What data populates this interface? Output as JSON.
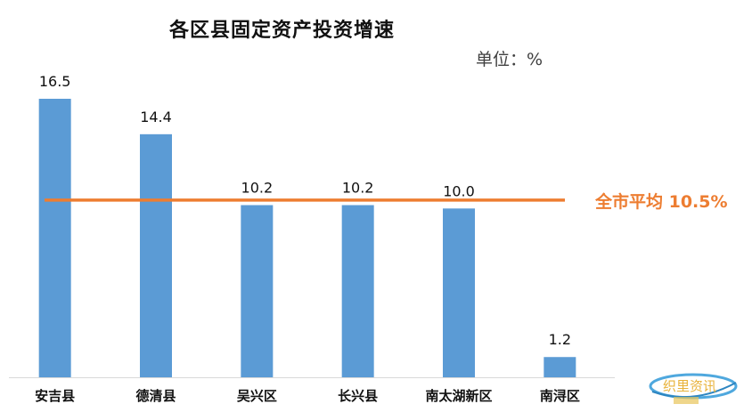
{
  "chart_data": {
    "type": "bar",
    "title": "各区县固定资产投资增速",
    "unit_text": "单位：%",
    "categories": [
      "安吉县",
      "德清县",
      "吴兴区",
      "长兴县",
      "南太湖新区",
      "南浔区"
    ],
    "values": [
      16.5,
      14.4,
      10.2,
      10.2,
      10.0,
      1.2
    ],
    "data_labels": [
      "16.5",
      "14.4",
      "10.2",
      "10.2",
      "10.0",
      "1.2"
    ],
    "average": {
      "value": 10.5,
      "label": "全市平均 10.5%"
    },
    "ylim": [
      0,
      18
    ],
    "grid": false,
    "legend": "none",
    "colors": {
      "bar": "#5B9BD5",
      "average_line": "#ED7D31",
      "text": "#111111",
      "axis": "#D9D9D9"
    }
  },
  "watermark": {
    "text": "织里资讯"
  }
}
